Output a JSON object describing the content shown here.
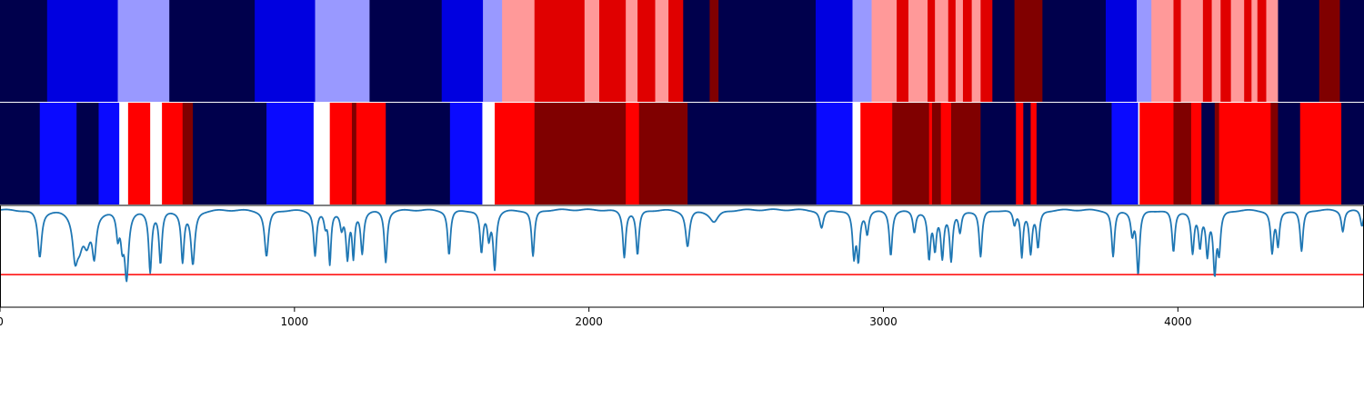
{
  "chart_data": {
    "type": "heatmap",
    "xlim": [
      0,
      4632
    ],
    "x_ticks": [
      0,
      1000,
      2000,
      3000,
      4000
    ],
    "x_tick_labels": [
      "0",
      "1000",
      "2000",
      "3000",
      "4000"
    ],
    "colors": {
      "navy": "#00004c",
      "blue": "#0000e0",
      "bright_blue": "#0a0aff",
      "light_blue": "#9999ff",
      "white": "#ffffff",
      "pink": "#ff9999",
      "red": "#e00000",
      "bright_red": "#ff0000",
      "dark_red": "#800000",
      "line": "#1f77b4",
      "threshold": "#ff0000"
    },
    "track1": {
      "segments": [
        [
          0,
          160,
          "navy"
        ],
        [
          160,
          400,
          "blue"
        ],
        [
          400,
          575,
          "light_blue"
        ],
        [
          575,
          865,
          "navy"
        ],
        [
          865,
          1070,
          "blue"
        ],
        [
          1070,
          1255,
          "light_blue"
        ],
        [
          1255,
          1500,
          "navy"
        ],
        [
          1500,
          1640,
          "blue"
        ],
        [
          1640,
          1705,
          "light_blue"
        ],
        [
          1705,
          1815,
          "pink"
        ],
        [
          1815,
          1985,
          "red"
        ],
        [
          1985,
          2035,
          "pink"
        ],
        [
          2035,
          2125,
          "red"
        ],
        [
          2125,
          2165,
          "pink"
        ],
        [
          2165,
          2225,
          "red"
        ],
        [
          2225,
          2270,
          "pink"
        ],
        [
          2270,
          2320,
          "red"
        ],
        [
          2320,
          2410,
          "navy"
        ],
        [
          2410,
          2440,
          "dark_red"
        ],
        [
          2440,
          2770,
          "navy"
        ],
        [
          2770,
          2895,
          "blue"
        ],
        [
          2895,
          2960,
          "light_blue"
        ],
        [
          2960,
          3045,
          "pink"
        ],
        [
          3045,
          3085,
          "red"
        ],
        [
          3085,
          3150,
          "pink"
        ],
        [
          3150,
          3175,
          "red"
        ],
        [
          3175,
          3220,
          "pink"
        ],
        [
          3220,
          3245,
          "red"
        ],
        [
          3245,
          3270,
          "pink"
        ],
        [
          3270,
          3300,
          "red"
        ],
        [
          3300,
          3330,
          "pink"
        ],
        [
          3330,
          3370,
          "red"
        ],
        [
          3370,
          3445,
          "navy"
        ],
        [
          3445,
          3540,
          "dark_red"
        ],
        [
          3540,
          3755,
          "navy"
        ],
        [
          3755,
          3860,
          "blue"
        ],
        [
          3860,
          3910,
          "light_blue"
        ],
        [
          3910,
          3985,
          "pink"
        ],
        [
          3985,
          4010,
          "red"
        ],
        [
          4010,
          4085,
          "pink"
        ],
        [
          4085,
          4115,
          "red"
        ],
        [
          4115,
          4145,
          "pink"
        ],
        [
          4145,
          4180,
          "red"
        ],
        [
          4180,
          4225,
          "pink"
        ],
        [
          4225,
          4250,
          "red"
        ],
        [
          4250,
          4270,
          "pink"
        ],
        [
          4270,
          4300,
          "red"
        ],
        [
          4300,
          4340,
          "pink"
        ],
        [
          4340,
          4480,
          "navy"
        ],
        [
          4480,
          4550,
          "dark_red"
        ],
        [
          4550,
          4632,
          "navy"
        ]
      ]
    },
    "track2": {
      "segments": [
        [
          0,
          135,
          "navy"
        ],
        [
          135,
          260,
          "bright_blue"
        ],
        [
          260,
          335,
          "navy"
        ],
        [
          335,
          405,
          "bright_blue"
        ],
        [
          405,
          435,
          "white"
        ],
        [
          435,
          510,
          "bright_red"
        ],
        [
          510,
          550,
          "white"
        ],
        [
          550,
          620,
          "bright_red"
        ],
        [
          620,
          655,
          "dark_red"
        ],
        [
          655,
          905,
          "navy"
        ],
        [
          905,
          1065,
          "bright_blue"
        ],
        [
          1065,
          1120,
          "white"
        ],
        [
          1120,
          1195,
          "bright_red"
        ],
        [
          1195,
          1210,
          "dark_red"
        ],
        [
          1210,
          1310,
          "bright_red"
        ],
        [
          1310,
          1528,
          "navy"
        ],
        [
          1528,
          1638,
          "bright_blue"
        ],
        [
          1638,
          1680,
          "white"
        ],
        [
          1680,
          1815,
          "bright_red"
        ],
        [
          1815,
          2125,
          "dark_red"
        ],
        [
          2125,
          2170,
          "bright_red"
        ],
        [
          2170,
          2335,
          "dark_red"
        ],
        [
          2335,
          2772,
          "navy"
        ],
        [
          2772,
          2895,
          "bright_blue"
        ],
        [
          2895,
          2922,
          "white"
        ],
        [
          2922,
          3030,
          "bright_red"
        ],
        [
          3030,
          3155,
          "dark_red"
        ],
        [
          3155,
          3165,
          "bright_red"
        ],
        [
          3165,
          3195,
          "dark_red"
        ],
        [
          3195,
          3230,
          "bright_red"
        ],
        [
          3230,
          3330,
          "dark_red"
        ],
        [
          3330,
          3450,
          "navy"
        ],
        [
          3450,
          3475,
          "bright_red"
        ],
        [
          3475,
          3500,
          "navy"
        ],
        [
          3500,
          3520,
          "bright_red"
        ],
        [
          3520,
          3775,
          "navy"
        ],
        [
          3775,
          3865,
          "bright_blue"
        ],
        [
          3865,
          3870,
          "white"
        ],
        [
          3870,
          3985,
          "bright_red"
        ],
        [
          3985,
          4045,
          "dark_red"
        ],
        [
          4045,
          4080,
          "bright_red"
        ],
        [
          4080,
          4125,
          "navy"
        ],
        [
          4125,
          4140,
          "dark_red"
        ],
        [
          4140,
          4315,
          "bright_red"
        ],
        [
          4315,
          4340,
          "dark_red"
        ],
        [
          4340,
          4415,
          "navy"
        ],
        [
          4415,
          4555,
          "bright_red"
        ],
        [
          4555,
          4632,
          "navy"
        ]
      ]
    },
    "line_series": {
      "ylim": [
        0,
        1
      ],
      "threshold": 0.32,
      "baseline": 0.96,
      "dips": [
        [
          135,
          0.5,
          8
        ],
        [
          255,
          0.58,
          10
        ],
        [
          270,
          0.7,
          14
        ],
        [
          295,
          0.68,
          14
        ],
        [
          320,
          0.56,
          8
        ],
        [
          400,
          0.72,
          6
        ],
        [
          415,
          0.7,
          6
        ],
        [
          430,
          0.32,
          8
        ],
        [
          510,
          0.37,
          6
        ],
        [
          545,
          0.45,
          6
        ],
        [
          620,
          0.47,
          6
        ],
        [
          655,
          0.43,
          8
        ],
        [
          905,
          0.5,
          8
        ],
        [
          1070,
          0.52,
          6
        ],
        [
          1105,
          0.82,
          6
        ],
        [
          1120,
          0.45,
          5
        ],
        [
          1160,
          0.8,
          6
        ],
        [
          1180,
          0.5,
          6
        ],
        [
          1200,
          0.52,
          5
        ],
        [
          1230,
          0.55,
          6
        ],
        [
          1310,
          0.45,
          6
        ],
        [
          1525,
          0.52,
          6
        ],
        [
          1635,
          0.55,
          6
        ],
        [
          1660,
          0.7,
          6
        ],
        [
          1680,
          0.4,
          6
        ],
        [
          1810,
          0.5,
          6
        ],
        [
          2120,
          0.5,
          6
        ],
        [
          2165,
          0.52,
          6
        ],
        [
          2335,
          0.6,
          8
        ],
        [
          2425,
          0.84,
          18
        ],
        [
          2790,
          0.78,
          8
        ],
        [
          2900,
          0.52,
          6
        ],
        [
          2915,
          0.5,
          6
        ],
        [
          2945,
          0.74,
          6
        ],
        [
          3025,
          0.52,
          6
        ],
        [
          3105,
          0.75,
          6
        ],
        [
          3155,
          0.5,
          6
        ],
        [
          3175,
          0.6,
          6
        ],
        [
          3200,
          0.52,
          6
        ],
        [
          3230,
          0.48,
          6
        ],
        [
          3260,
          0.75,
          6
        ],
        [
          3330,
          0.5,
          6
        ],
        [
          3445,
          0.82,
          6
        ],
        [
          3470,
          0.52,
          5
        ],
        [
          3500,
          0.55,
          6
        ],
        [
          3525,
          0.6,
          6
        ],
        [
          3780,
          0.5,
          6
        ],
        [
          3845,
          0.74,
          6
        ],
        [
          3865,
          0.34,
          6
        ],
        [
          3985,
          0.55,
          6
        ],
        [
          4050,
          0.55,
          6
        ],
        [
          4075,
          0.62,
          6
        ],
        [
          4100,
          0.55,
          6
        ],
        [
          4125,
          0.38,
          6
        ],
        [
          4140,
          0.58,
          6
        ],
        [
          4320,
          0.55,
          6
        ],
        [
          4340,
          0.62,
          6
        ],
        [
          4420,
          0.55,
          6
        ],
        [
          4560,
          0.75,
          6
        ],
        [
          4625,
          0.8,
          6
        ]
      ]
    }
  }
}
